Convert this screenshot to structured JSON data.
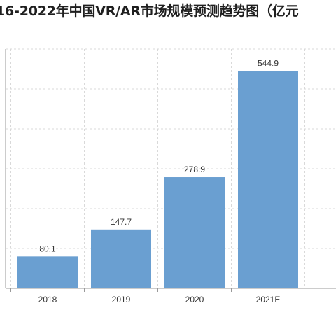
{
  "chart_data": {
    "type": "bar",
    "title": "16-2022年中国VR/AR市场规模预测趋势图（亿元",
    "categories": [
      "2018",
      "2019",
      "2020",
      "2021E"
    ],
    "values": [
      80.1,
      147.7,
      278.9,
      544.9
    ],
    "value_labels": [
      "80.1",
      "147.7",
      "278.9",
      "544.9"
    ],
    "xlabel": "",
    "ylabel": "",
    "ylim": [
      0,
      600
    ],
    "grid": true,
    "bar_color": "#6a9fd1",
    "grid_color": "#d9d9d9",
    "axis_color": "#999999"
  }
}
